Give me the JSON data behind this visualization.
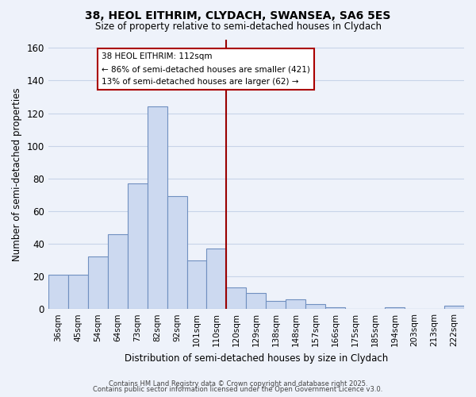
{
  "title": "38, HEOL EITHRIM, CLYDACH, SWANSEA, SA6 5ES",
  "subtitle": "Size of property relative to semi-detached houses in Clydach",
  "xlabel": "Distribution of semi-detached houses by size in Clydach",
  "ylabel": "Number of semi-detached properties",
  "bar_labels": [
    "36sqm",
    "45sqm",
    "54sqm",
    "64sqm",
    "73sqm",
    "82sqm",
    "92sqm",
    "101sqm",
    "110sqm",
    "120sqm",
    "129sqm",
    "138sqm",
    "148sqm",
    "157sqm",
    "166sqm",
    "175sqm",
    "185sqm",
    "194sqm",
    "203sqm",
    "213sqm",
    "222sqm"
  ],
  "bar_values": [
    21,
    21,
    32,
    46,
    77,
    124,
    69,
    30,
    37,
    13,
    10,
    5,
    6,
    3,
    1,
    0,
    0,
    1,
    0,
    0,
    2
  ],
  "bar_color": "#ccd9f0",
  "bar_edge_color": "#7090c0",
  "ylim": [
    0,
    165
  ],
  "yticks": [
    0,
    20,
    40,
    60,
    80,
    100,
    120,
    140,
    160
  ],
  "property_line_label": "38 HEOL EITHRIM: 112sqm",
  "annotation_smaller": "← 86% of semi-detached houses are smaller (421)",
  "annotation_larger": "13% of semi-detached houses are larger (62) →",
  "annotation_box_color": "#ffffff",
  "annotation_box_edge": "#aa0000",
  "vline_color": "#990000",
  "grid_color": "#c8d4e8",
  "bg_color": "#eef2fa",
  "footer1": "Contains HM Land Registry data © Crown copyright and database right 2025.",
  "footer2": "Contains public sector information licensed under the Open Government Licence v3.0.",
  "vline_index": 9.0
}
